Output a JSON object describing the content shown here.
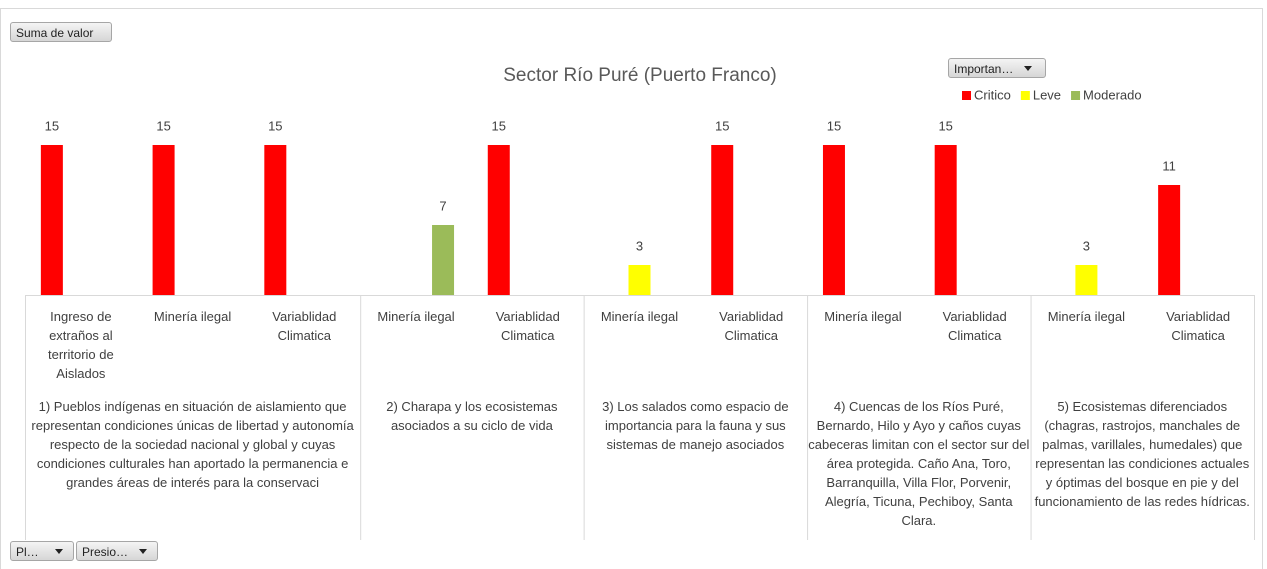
{
  "chart_data": {
    "type": "bar",
    "title": "Sector Río Puré (Puerto Franco)",
    "field_buttons": {
      "values": "Suma de valor",
      "legend": "Importan…",
      "axis": [
        "Pl…",
        "Presio…"
      ]
    },
    "groups": [
      {
        "label": "1) Pueblos indígenas en situación  de aislamiento que representan condiciones únicas de libertad y autonomía respecto de la sociedad nacional y global y cuyas condiciones culturales han aportado la permanencia  e grandes áreas de interés para la conservaci",
        "categories": [
          "Ingreso de extraños al territorio de Aislados",
          "Minería ilegal",
          "Variablidad Climatica"
        ]
      },
      {
        "label": "2) Charapa y los ecosistemas asociados a su ciclo de vida",
        "categories": [
          "Minería ilegal",
          "Variablidad Climatica"
        ]
      },
      {
        "label": "3) Los salados como espacio de importancia para la fauna  y sus sistemas de manejo asociados",
        "categories": [
          "Minería ilegal",
          "Variablidad Climatica"
        ]
      },
      {
        "label": "4) Cuencas de los Ríos Puré, Bernardo, Hilo y Ayo y  caños cuyas cabeceras limitan con el sector sur del área protegida. Caño Ana, Toro, Barranquilla, Villa Flor, Porvenir, Alegría, Ticuna, Pechiboy, Santa Clara.",
        "categories": [
          "Minería ilegal",
          "Variablidad Climatica"
        ]
      },
      {
        "label": "5) Ecosistemas diferenciados (chagras, rastrojos,  manchales de palmas, varillales, humedales) que representan las condiciones actuales y óptimas del bosque en pie y del funcionamiento de las redes hídricas.",
        "categories": [
          "Minería ilegal",
          "Variablidad Climatica"
        ]
      }
    ],
    "series": [
      {
        "name": "Critico",
        "color": "#FF0000",
        "values": [
          15,
          15,
          15,
          null,
          15,
          null,
          15,
          15,
          15,
          null,
          11
        ]
      },
      {
        "name": "Leve",
        "color": "#FFFF00",
        "values": [
          null,
          null,
          null,
          null,
          null,
          3,
          null,
          null,
          null,
          3,
          null
        ]
      },
      {
        "name": "Moderado",
        "color": "#9BBB59",
        "values": [
          null,
          null,
          null,
          7,
          null,
          null,
          null,
          null,
          null,
          null,
          null
        ]
      }
    ],
    "legend": "top-right"
  }
}
